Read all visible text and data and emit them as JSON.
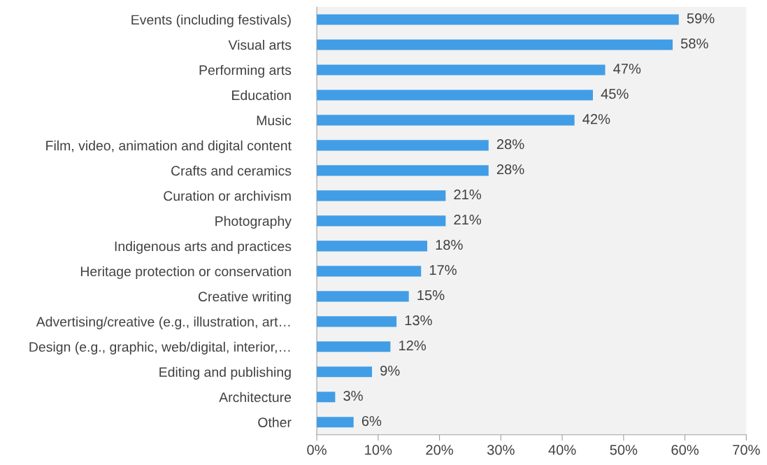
{
  "chart_data": {
    "type": "bar",
    "orientation": "horizontal",
    "categories": [
      "Events (including festivals)",
      "Visual arts",
      "Performing arts",
      "Education",
      "Music",
      "Film, video, animation and digital content",
      "Crafts and ceramics",
      "Curation or archivism",
      "Photography",
      "Indigenous arts and practices",
      "Heritage protection or conservation",
      "Creative writing",
      "Advertising/creative (e.g., illustration, art…",
      "Design (e.g., graphic, web/digital, interior,…",
      "Editing and publishing",
      "Architecture",
      "Other"
    ],
    "values": [
      59,
      58,
      47,
      45,
      42,
      28,
      28,
      21,
      21,
      18,
      17,
      15,
      13,
      12,
      9,
      3,
      6
    ],
    "color": "#419de6",
    "xlim": [
      0,
      70
    ],
    "xticks": [
      {
        "value": 0,
        "label": "0%"
      },
      {
        "value": 10,
        "label": "10%"
      },
      {
        "value": 20,
        "label": "20%"
      },
      {
        "value": 30,
        "label": "30%"
      },
      {
        "value": 40,
        "label": "40%"
      },
      {
        "value": 50,
        "label": "50%"
      },
      {
        "value": 60,
        "label": "60%"
      },
      {
        "value": 70,
        "label": "70%"
      }
    ],
    "value_labels": [
      "59%",
      "58%",
      "47%",
      "45%",
      "42%",
      "28%",
      "28%",
      "21%",
      "21%",
      "18%",
      "17%",
      "15%",
      "13%",
      "12%",
      "9%",
      "3%",
      "6%"
    ],
    "grid": false,
    "legend": false
  }
}
